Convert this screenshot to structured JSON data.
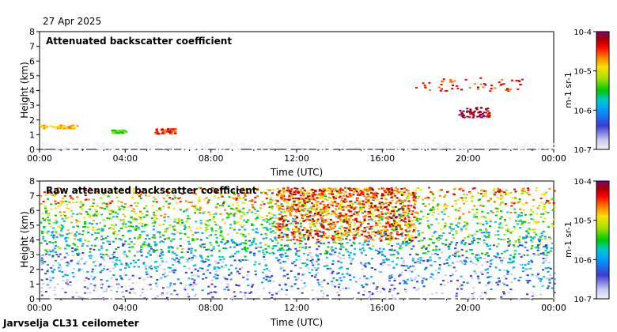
{
  "header": {
    "date": "27 Apr 2025"
  },
  "footer": {
    "site_label": "Jarvselja CL31 ceilometer"
  },
  "colorbar": {
    "tick_labels": [
      "10-4",
      "10-5",
      "10-6",
      "10-7"
    ],
    "unit_label": "m-1 sr-1",
    "scale": "log",
    "range": [
      1e-07,
      0.0001
    ],
    "colors": [
      "#f2f2fb",
      "#c8c8f0",
      "#3c3cd2",
      "#00a0ff",
      "#00c8c8",
      "#00c800",
      "#a0e000",
      "#ffe000",
      "#ff8000",
      "#ff0000",
      "#a00000",
      "#800080"
    ]
  },
  "chart_data": [
    {
      "type": "heatmap",
      "title": "Attenuated backscatter coefficient",
      "xlabel": "Time (UTC)",
      "ylabel": "Height (km)",
      "xlim": [
        "00:00",
        "00:00"
      ],
      "ylim": [
        0,
        8
      ],
      "x_ticks": [
        "00:00",
        "04:00",
        "08:00",
        "12:00",
        "16:00",
        "20:00",
        "00:00"
      ],
      "y_ticks": [
        0,
        1,
        2,
        3,
        4,
        5,
        6,
        7,
        8
      ],
      "features": [
        {
          "desc": "near-surface layer",
          "time_start": "00:00",
          "time_end": "24:00",
          "height_km": [
            0,
            0.5
          ],
          "level": "1e-7"
        },
        {
          "desc": "low cloud",
          "time_start": "00:00",
          "time_end": "01:45",
          "height_km": [
            1.45,
            1.7
          ],
          "level": "1e-5"
        },
        {
          "desc": "low cloud",
          "time_start": "03:20",
          "time_end": "04:00",
          "height_km": [
            1.15,
            1.35
          ],
          "level": "3e-6"
        },
        {
          "desc": "low cloud",
          "time_start": "05:20",
          "time_end": "06:20",
          "height_km": [
            1.1,
            1.45
          ],
          "level": "2e-5"
        },
        {
          "desc": "mid cloud",
          "time_start": "17:30",
          "time_end": "22:30",
          "height_km": [
            4.0,
            4.9
          ],
          "level": "2e-5"
        },
        {
          "desc": "mid cloud",
          "time_start": "19:30",
          "time_end": "21:00",
          "height_km": [
            2.2,
            2.9
          ],
          "level": "5e-5"
        }
      ]
    },
    {
      "type": "heatmap",
      "title": "Raw attenuated backscatter coefficient",
      "xlabel": "Time (UTC)",
      "ylabel": "Height (km)",
      "xlim": [
        "00:00",
        "00:00"
      ],
      "ylim": [
        0,
        8
      ],
      "x_ticks": [
        "00:00",
        "04:00",
        "08:00",
        "12:00",
        "16:00",
        "20:00",
        "00:00"
      ],
      "y_ticks": [
        0,
        1,
        2,
        3,
        4,
        5,
        6,
        7,
        8
      ],
      "features": [
        {
          "desc": "noise field",
          "time_start": "00:00",
          "time_end": "24:00",
          "height_km": [
            0,
            7.6
          ],
          "level": "1e-6 to 1e-5"
        },
        {
          "desc": "strong noise",
          "time_start": "11:00",
          "time_end": "17:30",
          "height_km": [
            4.0,
            7.6
          ],
          "level": "3e-5"
        }
      ]
    }
  ]
}
